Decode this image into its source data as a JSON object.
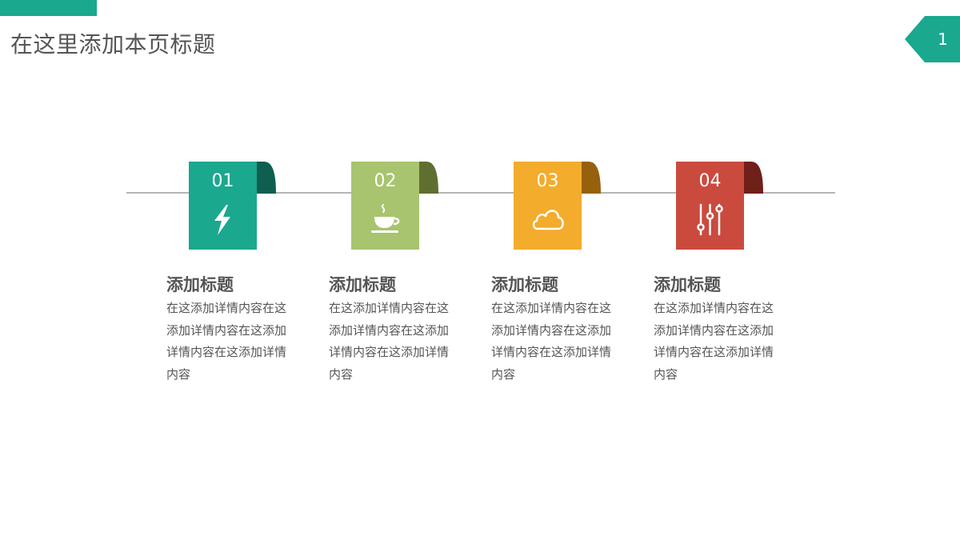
{
  "page": {
    "title": "在这里添加本页标题",
    "number": "1"
  },
  "colors": {
    "accent": "#1aa88f",
    "text": "#555555",
    "line": "#b5b5b5"
  },
  "items": [
    {
      "number": "01",
      "title": "添加标题",
      "description": "在这添加详情内容在这添加详情内容在这添加详情内容在这添加详情内容",
      "icon": "lightning-icon",
      "color": "#1aa88f",
      "fold_color": "#0f5e50"
    },
    {
      "number": "02",
      "title": "添加标题",
      "description": "在这添加详情内容在这添加详情内容在这添加详情内容在这添加详情内容",
      "icon": "coffee-cup-icon",
      "color": "#a8c46e",
      "fold_color": "#5f6f30"
    },
    {
      "number": "03",
      "title": "添加标题",
      "description": "在这添加详情内容在这添加详情内容在这添加详情内容在这添加详情内容",
      "icon": "cloud-icon",
      "color": "#f3ac2c",
      "fold_color": "#96600c"
    },
    {
      "number": "04",
      "title": "添加标题",
      "description": "在这添加详情内容在这添加详情内容在这添加详情内容在这添加详情内容",
      "icon": "sliders-icon",
      "color": "#cb4a3e",
      "fold_color": "#6e2019"
    }
  ]
}
